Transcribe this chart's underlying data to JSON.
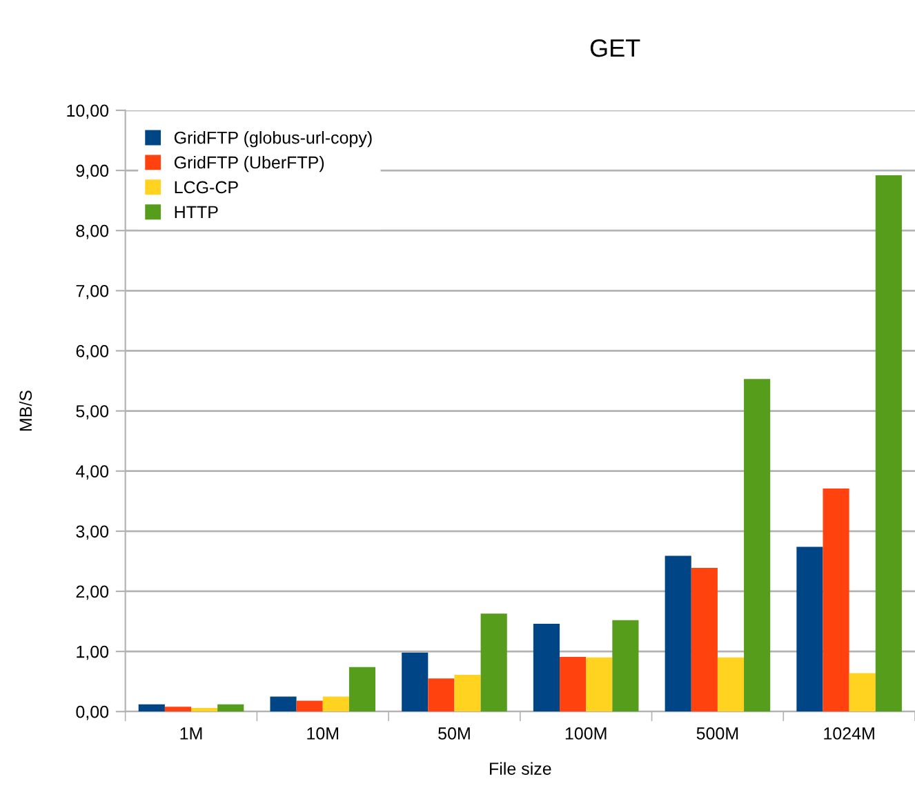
{
  "chart_data": {
    "type": "bar",
    "title": "GET",
    "xlabel": "File size",
    "ylabel": "MB/S",
    "categories": [
      "1M",
      "10M",
      "50M",
      "100M",
      "500M",
      "1024M"
    ],
    "series": [
      {
        "name": "GridFTP (globus-url-copy)",
        "color": "#004586",
        "values": [
          0.12,
          0.25,
          0.98,
          1.46,
          2.59,
          2.74
        ]
      },
      {
        "name": "GridFTP (UberFTP)",
        "color": "#ff420e",
        "values": [
          0.08,
          0.18,
          0.55,
          0.91,
          2.39,
          3.71
        ]
      },
      {
        "name": "LCG-CP",
        "color": "#ffd320",
        "values": [
          0.06,
          0.25,
          0.61,
          0.9,
          0.9,
          0.64
        ]
      },
      {
        "name": "HTTP",
        "color": "#579d1c",
        "values": [
          0.12,
          0.74,
          1.63,
          1.52,
          5.53,
          8.92
        ]
      }
    ],
    "ylim": [
      0,
      10
    ],
    "yticks": [
      {
        "value": 0,
        "label": "0,00"
      },
      {
        "value": 1,
        "label": "1,00"
      },
      {
        "value": 2,
        "label": "2,00"
      },
      {
        "value": 3,
        "label": "3,00"
      },
      {
        "value": 4,
        "label": "4,00"
      },
      {
        "value": 5,
        "label": "5,00"
      },
      {
        "value": 6,
        "label": "6,00"
      },
      {
        "value": 7,
        "label": "7,00"
      },
      {
        "value": 8,
        "label": "8,00"
      },
      {
        "value": 9,
        "label": "9,00"
      },
      {
        "value": 10,
        "label": "10,00"
      }
    ],
    "grid": "y",
    "legend": "top left"
  }
}
